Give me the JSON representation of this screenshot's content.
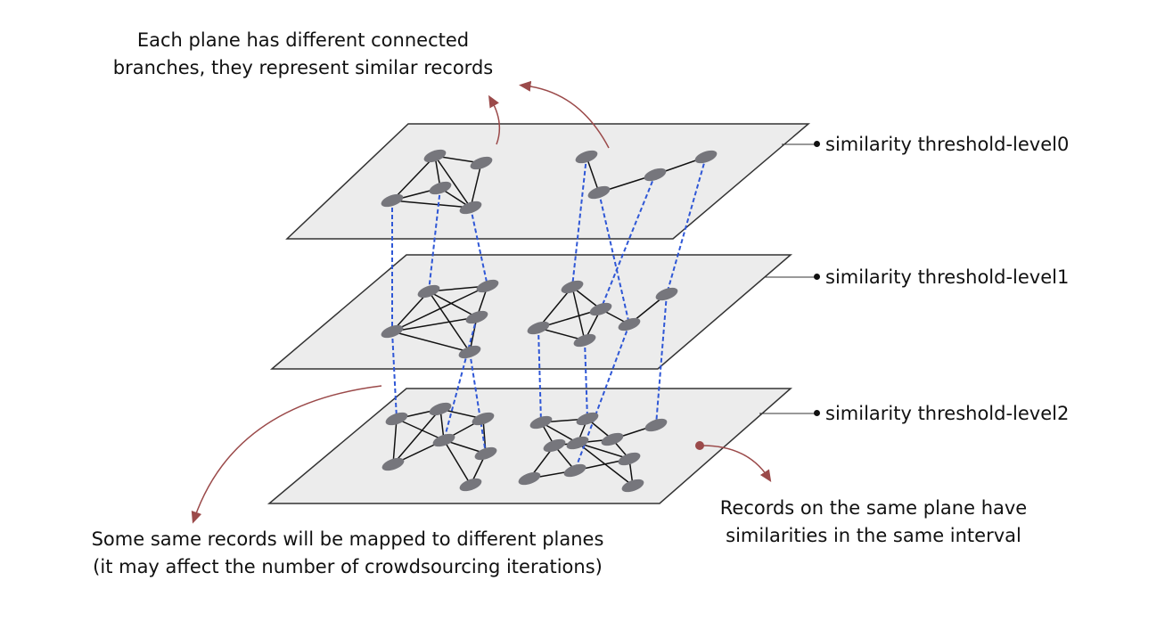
{
  "annotations": {
    "top": [
      "Each plane has different connected",
      "branches, they represent similar records"
    ],
    "bottom_left": [
      "Some same records will be mapped to different planes",
      "(it may affect the number of crowdsourcing iterations)"
    ],
    "bottom_right": [
      "Records on the same plane have",
      "similarities in the same interval"
    ]
  },
  "levels": [
    {
      "label": "similarity threshold-level0"
    },
    {
      "label": "similarity threshold-level1"
    },
    {
      "label": "similarity threshold-level2"
    }
  ],
  "colors": {
    "plane_fill": "#ececec",
    "plane_stroke": "#333333",
    "node": "#76767c",
    "edge": "#111111",
    "cross_link": "#2f57d6",
    "arrow": "#9b4a4a"
  }
}
